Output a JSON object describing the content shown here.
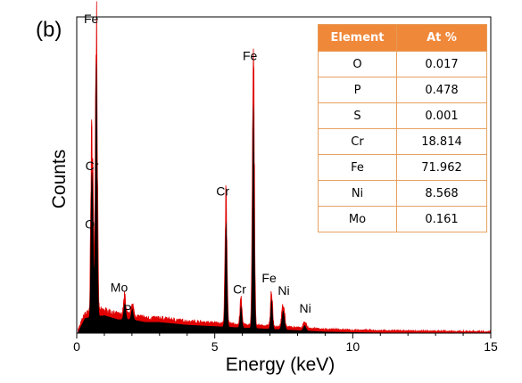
{
  "panel_label": "(b)",
  "chart_data": {
    "type": "line",
    "title": "",
    "xlabel": "Energy (keV)",
    "ylabel": "Counts",
    "xlim": [
      0,
      15
    ],
    "ylim": [
      0,
      1000
    ],
    "x_ticks": [
      "0",
      "5",
      "10",
      "15"
    ],
    "y_ticks_shown": false,
    "grid": false,
    "colors": {
      "spectrum_fill": "#000000",
      "spectrum_edge": "#e00000",
      "table_header": "#f0883a",
      "table_border": "#e8a060"
    },
    "peaks": [
      {
        "label": "O",
        "energy": 0.52,
        "counts": 280
      },
      {
        "label": "Fe",
        "energy": 0.71,
        "counts": 950
      },
      {
        "label": "Cr",
        "energy": 0.57,
        "counts": 470
      },
      {
        "label": "Mo",
        "energy": 1.74,
        "counts": 60
      },
      {
        "label": "P",
        "energy": 2.01,
        "counts": 40
      },
      {
        "label": "Cr",
        "energy": 5.41,
        "counts": 390
      },
      {
        "label": "Cr",
        "energy": 5.95,
        "counts": 80
      },
      {
        "label": "Fe",
        "energy": 6.4,
        "counts": 830
      },
      {
        "label": "Fe",
        "energy": 7.06,
        "counts": 110
      },
      {
        "label": "Ni",
        "energy": 7.48,
        "counts": 70
      },
      {
        "label": "Ni",
        "energy": 8.26,
        "counts": 20
      }
    ],
    "background_edge": [
      [
        0.05,
        10
      ],
      [
        0.3,
        60
      ],
      [
        1.0,
        70
      ],
      [
        1.5,
        55
      ],
      [
        2.0,
        55
      ],
      [
        2.5,
        45
      ],
      [
        3.0,
        45
      ],
      [
        3.5,
        40
      ],
      [
        4.0,
        35
      ],
      [
        5.0,
        30
      ],
      [
        6.0,
        25
      ],
      [
        7.0,
        20
      ],
      [
        8.0,
        15
      ],
      [
        9.0,
        10
      ],
      [
        10.0,
        8
      ],
      [
        12.0,
        5
      ],
      [
        15.0,
        3
      ]
    ],
    "peak_widths": {
      "O": 0.025,
      "Fe": 0.035,
      "Cr": 0.035,
      "Mo": 0.04,
      "P": 0.04,
      "Ni": 0.05
    }
  },
  "table": {
    "headers": [
      "Element",
      "At %"
    ],
    "rows": [
      [
        "O",
        "0.017"
      ],
      [
        "P",
        "0.478"
      ],
      [
        "S",
        "0.001"
      ],
      [
        "Cr",
        "18.814"
      ],
      [
        "Fe",
        "71.962"
      ],
      [
        "Ni",
        "8.568"
      ],
      [
        "Mo",
        "0.161"
      ]
    ]
  }
}
